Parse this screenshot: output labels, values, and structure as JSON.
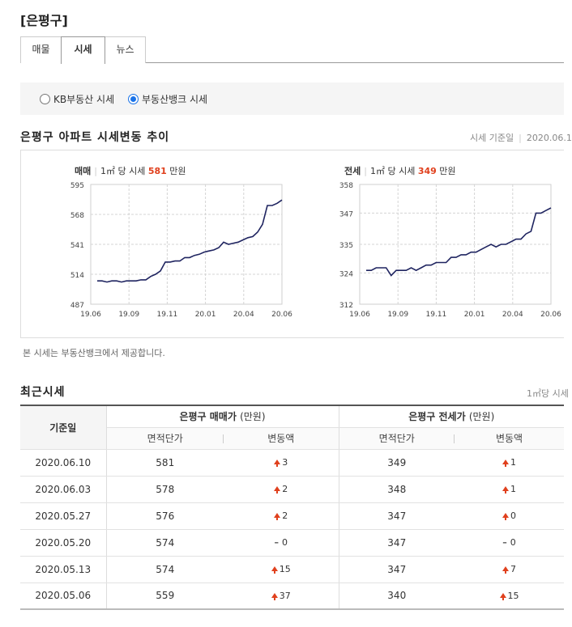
{
  "page": {
    "title": "[은평구]"
  },
  "tabs": [
    {
      "label": "매물",
      "active": false
    },
    {
      "label": "시세",
      "active": true
    },
    {
      "label": "뉴스",
      "active": false
    }
  ],
  "radio": {
    "options": [
      {
        "label": "KB부동산 시세",
        "checked": false
      },
      {
        "label": "부동산뱅크 시세",
        "checked": true
      }
    ]
  },
  "trend": {
    "title": "은평구 아파트 시세변동 추이",
    "date_label": "시세 기준일",
    "date_value": "2020.06.1"
  },
  "note": "본 시세는 부동산뱅크에서 제공합니다.",
  "charts": [
    {
      "kind": "매매",
      "unit_prefix": "1㎡ 당 시세",
      "value": "581",
      "unit_suffix": "만원"
    },
    {
      "kind": "전세",
      "unit_prefix": "1㎡ 당 시세",
      "value": "349",
      "unit_suffix": "만원"
    }
  ],
  "chart_data": [
    {
      "type": "line",
      "title": "",
      "xlabel": "",
      "ylabel": "",
      "x_ticks": [
        "19.06",
        "19.09",
        "19.11",
        "20.01",
        "20.04",
        "20.06"
      ],
      "y_ticks": [
        487,
        514,
        541,
        568,
        595
      ],
      "ylim": [
        487,
        595
      ],
      "grid": true,
      "color": "#1f2460",
      "values": [
        508,
        508,
        507,
        508,
        508,
        507,
        508,
        508,
        508,
        509,
        509,
        512,
        514,
        517,
        525,
        525,
        526,
        526,
        529,
        529,
        531,
        532,
        534,
        535,
        536,
        538,
        543,
        541,
        542,
        543,
        545,
        547,
        548,
        552,
        559,
        576,
        576,
        578,
        581
      ]
    },
    {
      "type": "line",
      "title": "",
      "xlabel": "",
      "ylabel": "",
      "x_ticks": [
        "19.06",
        "19.09",
        "19.11",
        "20.01",
        "20.04",
        "20.06"
      ],
      "y_ticks": [
        312,
        324,
        335,
        347,
        358
      ],
      "ylim": [
        312,
        358
      ],
      "grid": true,
      "color": "#1f2460",
      "values": [
        325,
        325,
        326,
        326,
        326,
        323,
        325,
        325,
        325,
        326,
        325,
        326,
        327,
        327,
        328,
        328,
        328,
        330,
        330,
        331,
        331,
        332,
        332,
        333,
        334,
        335,
        334,
        335,
        335,
        336,
        337,
        337,
        339,
        340,
        347,
        347,
        348,
        349
      ]
    }
  ],
  "recent": {
    "title": "최근시세",
    "unit_note": "1㎡당 시세",
    "col_day": "기준일",
    "group_sale": "은평구 매매가",
    "group_jeonse": "은평구 전세가",
    "group_unit": "(만원)",
    "sub_price": "면적단가",
    "sub_change": "변동액",
    "rows": [
      {
        "date": "2020.06.10",
        "sale": "581",
        "sale_chg": "3",
        "sale_dir": "up",
        "jeonse": "349",
        "jeonse_chg": "1",
        "jeonse_dir": "up"
      },
      {
        "date": "2020.06.03",
        "sale": "578",
        "sale_chg": "2",
        "sale_dir": "up",
        "jeonse": "348",
        "jeonse_chg": "1",
        "jeonse_dir": "up"
      },
      {
        "date": "2020.05.27",
        "sale": "576",
        "sale_chg": "2",
        "sale_dir": "up",
        "jeonse": "347",
        "jeonse_chg": "0",
        "jeonse_dir": "up"
      },
      {
        "date": "2020.05.20",
        "sale": "574",
        "sale_chg": "0",
        "sale_dir": "flat",
        "jeonse": "347",
        "jeonse_chg": "0",
        "jeonse_dir": "flat"
      },
      {
        "date": "2020.05.13",
        "sale": "574",
        "sale_chg": "15",
        "sale_dir": "up",
        "jeonse": "347",
        "jeonse_chg": "7",
        "jeonse_dir": "up"
      },
      {
        "date": "2020.05.06",
        "sale": "559",
        "sale_chg": "37",
        "sale_dir": "up",
        "jeonse": "340",
        "jeonse_chg": "15",
        "jeonse_dir": "up"
      }
    ]
  }
}
